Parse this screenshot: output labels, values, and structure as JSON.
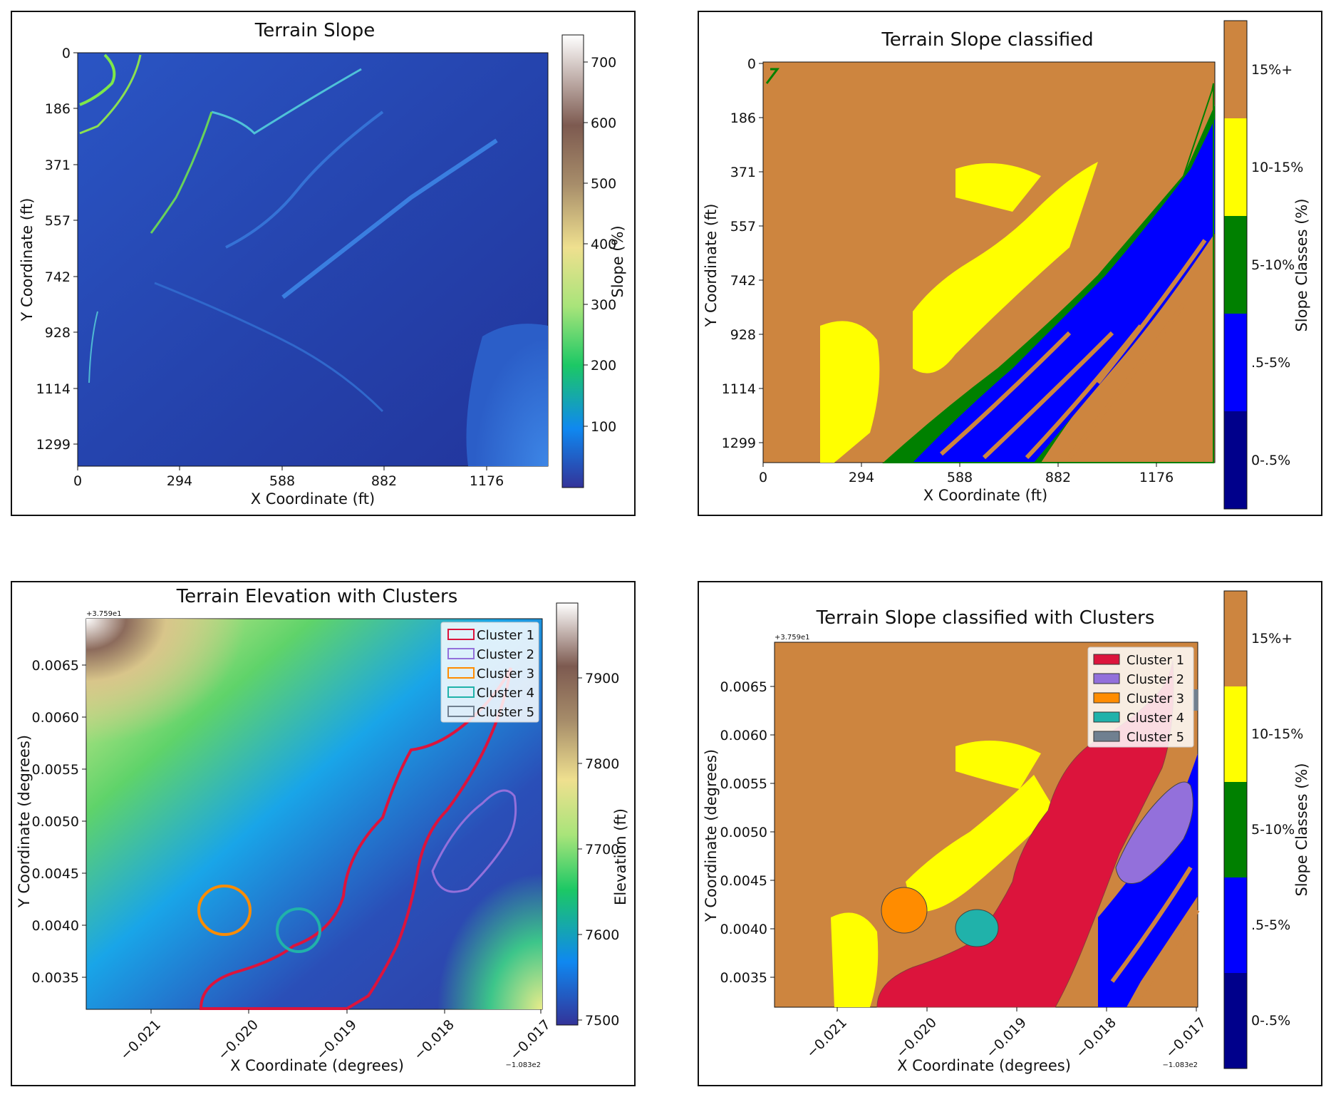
{
  "panels": {
    "slope": {
      "title": "Terrain Slope",
      "xlabel": "X Coordinate (ft)",
      "ylabel": "Y Coordinate (ft)",
      "xticks": [
        "0",
        "294",
        "588",
        "882",
        "1176"
      ],
      "yticks": [
        "0",
        "186",
        "371",
        "557",
        "742",
        "928",
        "1114",
        "1299"
      ],
      "colorbar_label": "Slope (%)",
      "colorbar_ticks": [
        "700",
        "600",
        "500",
        "400",
        "300",
        "200",
        "100"
      ]
    },
    "classified": {
      "title": "Terrain Slope classified",
      "xlabel": "X Coordinate (ft)",
      "ylabel": "Y Coordinate (ft)",
      "xticks": [
        "0",
        "294",
        "588",
        "882",
        "1176"
      ],
      "yticks": [
        "0",
        "186",
        "371",
        "557",
        "742",
        "928",
        "1114",
        "1299"
      ],
      "colorbar_label": "Slope Classes (%)",
      "class_labels": [
        "15%+",
        "10-15%",
        "5-10%",
        ".5-5%",
        "0-.5%"
      ]
    },
    "elevation": {
      "title": "Terrain Elevation with Clusters",
      "xlabel": "X Coordinate (degrees)",
      "ylabel": "Y Coordinate (degrees)",
      "xticks": [
        "−0.021",
        "−0.020",
        "−0.019",
        "−0.018",
        "−0.017"
      ],
      "yticks": [
        "0.0065",
        "0.0060",
        "0.0055",
        "0.0050",
        "0.0045",
        "0.0040",
        "0.0035"
      ],
      "x_offset": "−1.083e2",
      "y_offset": "+3.759e1",
      "colorbar_label": "Elevation (ft)",
      "colorbar_ticks": [
        "7900",
        "7800",
        "7700",
        "7600",
        "7500"
      ],
      "legend": [
        "Cluster 1",
        "Cluster 2",
        "Cluster 3",
        "Cluster 4",
        "Cluster 5"
      ]
    },
    "classified_clusters": {
      "title": "Terrain Slope classified with Clusters",
      "xlabel": "X Coordinate (degrees)",
      "ylabel": "Y Coordinate (degrees)",
      "xticks": [
        "−0.021",
        "−0.020",
        "−0.019",
        "−0.018",
        "−0.017"
      ],
      "yticks": [
        "0.0065",
        "0.0060",
        "0.0055",
        "0.0050",
        "0.0045",
        "0.0040",
        "0.0035"
      ],
      "x_offset": "−1.083e2",
      "y_offset": "+3.759e1",
      "colorbar_label": "Slope Classes (%)",
      "class_labels": [
        "15%+",
        "10-15%",
        "5-10%",
        ".5-5%",
        "0-.5%"
      ],
      "legend": [
        "Cluster 1",
        "Cluster 2",
        "Cluster 3",
        "Cluster 4",
        "Cluster 5"
      ]
    }
  },
  "chart_data": [
    {
      "type": "heatmap",
      "title": "Terrain Slope",
      "xlabel": "X Coordinate (ft)",
      "ylabel": "Y Coordinate (ft)",
      "x_ticks": [
        0,
        294,
        588,
        882,
        1176
      ],
      "y_ticks": [
        0,
        186,
        371,
        557,
        742,
        928,
        1114,
        1299
      ],
      "xlim": [
        0,
        1400
      ],
      "ylim": [
        1380,
        0
      ],
      "colorbar": {
        "label": "Slope (%)",
        "ticks": [
          100,
          200,
          300,
          400,
          500,
          600,
          700
        ],
        "range": [
          0,
          745
        ],
        "colormap": "terrain"
      }
    },
    {
      "type": "heatmap",
      "title": "Terrain Slope classified",
      "xlabel": "X Coordinate (ft)",
      "ylabel": "Y Coordinate (ft)",
      "x_ticks": [
        0,
        294,
        588,
        882,
        1176
      ],
      "y_ticks": [
        0,
        186,
        371,
        557,
        742,
        928,
        1114,
        1299
      ],
      "classes": [
        {
          "label": "0-.5%",
          "color": "#00008b"
        },
        {
          "label": ".5-5%",
          "color": "#0000ff"
        },
        {
          "label": "5-10%",
          "color": "#008000"
        },
        {
          "label": "10-15%",
          "color": "#ffff00"
        },
        {
          "label": "15%+",
          "color": "#cd853f"
        }
      ],
      "colorbar_label": "Slope Classes (%)"
    },
    {
      "type": "heatmap",
      "title": "Terrain Elevation with Clusters",
      "xlabel": "X Coordinate (degrees)",
      "ylabel": "Y Coordinate (degrees)",
      "x_ticks": [
        -0.021,
        -0.02,
        -0.019,
        -0.018,
        -0.017
      ],
      "y_ticks": [
        0.0035,
        0.004,
        0.0045,
        0.005,
        0.0055,
        0.006,
        0.0065
      ],
      "x_offset": -108.3,
      "y_offset": 37.59,
      "colorbar": {
        "label": "Elevation (ft)",
        "ticks": [
          7500,
          7600,
          7700,
          7800,
          7900
        ],
        "range": [
          7490,
          7990
        ],
        "colormap": "terrain"
      },
      "series": [
        {
          "name": "Cluster 1",
          "color": "#dc143c",
          "style": "outline"
        },
        {
          "name": "Cluster 2",
          "color": "#9370db",
          "style": "outline"
        },
        {
          "name": "Cluster 3",
          "color": "#ff8c00",
          "style": "outline"
        },
        {
          "name": "Cluster 4",
          "color": "#20b2aa",
          "style": "outline"
        },
        {
          "name": "Cluster 5",
          "color": "#708090",
          "style": "outline"
        }
      ],
      "legend_position": "top-right"
    },
    {
      "type": "heatmap",
      "title": "Terrain Slope classified with Clusters",
      "xlabel": "X Coordinate (degrees)",
      "ylabel": "Y Coordinate (degrees)",
      "x_ticks": [
        -0.021,
        -0.02,
        -0.019,
        -0.018,
        -0.017
      ],
      "y_ticks": [
        0.0035,
        0.004,
        0.0045,
        0.005,
        0.0055,
        0.006,
        0.0065
      ],
      "x_offset": -108.3,
      "y_offset": 37.59,
      "classes": [
        {
          "label": "0-.5%",
          "color": "#00008b"
        },
        {
          "label": ".5-5%",
          "color": "#0000ff"
        },
        {
          "label": "5-10%",
          "color": "#008000"
        },
        {
          "label": "10-15%",
          "color": "#ffff00"
        },
        {
          "label": "15%+",
          "color": "#cd853f"
        }
      ],
      "series": [
        {
          "name": "Cluster 1",
          "color": "#dc143c",
          "style": "filled"
        },
        {
          "name": "Cluster 2",
          "color": "#9370db",
          "style": "filled"
        },
        {
          "name": "Cluster 3",
          "color": "#ff8c00",
          "style": "filled"
        },
        {
          "name": "Cluster 4",
          "color": "#20b2aa",
          "style": "filled"
        },
        {
          "name": "Cluster 5",
          "color": "#708090",
          "style": "filled"
        }
      ],
      "legend_position": "top-right",
      "colorbar_label": "Slope Classes (%)"
    }
  ]
}
